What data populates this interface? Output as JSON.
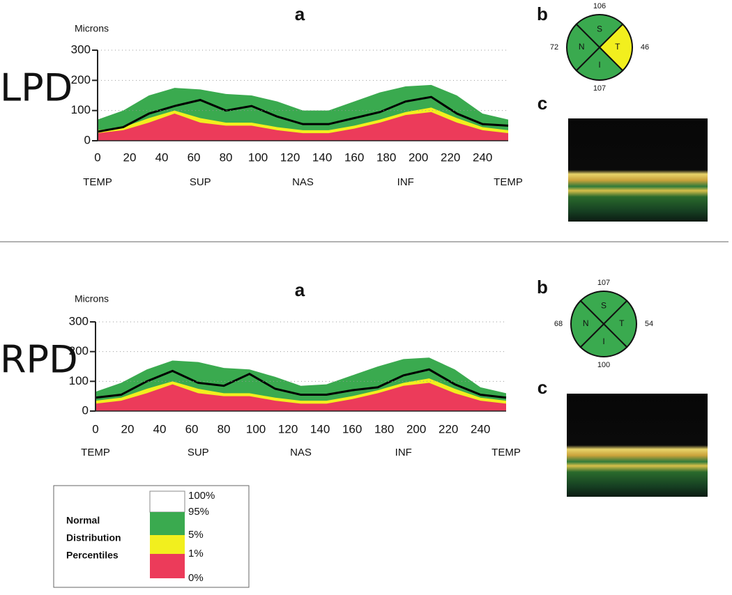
{
  "chart_data": [
    {
      "type": "percentile-area",
      "title": "a",
      "y_label": "Microns",
      "x": [
        0,
        16,
        32,
        48,
        64,
        80,
        96,
        112,
        128,
        144,
        160,
        176,
        192,
        208,
        224,
        240,
        256
      ],
      "series": [
        {
          "color": "#3aaa4f",
          "values": [
            70,
            100,
            150,
            175,
            170,
            155,
            150,
            130,
            100,
            100,
            130,
            160,
            180,
            185,
            150,
            90,
            70
          ]
        },
        {
          "color": "#f2ef1e",
          "values": [
            35,
            45,
            75,
            100,
            75,
            60,
            60,
            45,
            35,
            35,
            50,
            70,
            95,
            110,
            75,
            45,
            35
          ]
        },
        {
          "color": "#ec3b5a",
          "values": [
            25,
            35,
            60,
            90,
            60,
            50,
            50,
            35,
            25,
            25,
            40,
            60,
            85,
            95,
            60,
            35,
            25
          ]
        },
        {
          "color": "#000000",
          "line": true,
          "values": [
            30,
            45,
            90,
            115,
            135,
            100,
            115,
            80,
            55,
            55,
            75,
            95,
            130,
            145,
            90,
            55,
            50
          ]
        }
      ],
      "xlim": [
        0,
        256
      ],
      "xticks": [
        0,
        20,
        40,
        60,
        80,
        100,
        120,
        140,
        160,
        180,
        200,
        220,
        240
      ],
      "ylim": [
        0,
        300
      ],
      "yticks": [
        0,
        100,
        200,
        300
      ],
      "grid": true,
      "regions": [
        {
          "value": 0,
          "label": "TEMP"
        },
        {
          "value": 64,
          "label": "SUP"
        },
        {
          "value": 128,
          "label": "NAS"
        },
        {
          "value": 192,
          "label": "INF"
        },
        {
          "value": 256,
          "label": "TEMP"
        }
      ]
    },
    {
      "type": "quadrant",
      "title": "b",
      "categories": [
        "S",
        "T",
        "I",
        "N"
      ],
      "values": [
        106,
        46,
        107,
        72
      ],
      "colors": [
        "#3aaa4f",
        "#f2ef1e",
        "#3aaa4f",
        "#3aaa4f"
      ]
    },
    {
      "type": "percentile-area",
      "title": "a",
      "y_label": "Microns",
      "x": [
        0,
        16,
        32,
        48,
        64,
        80,
        96,
        112,
        128,
        144,
        160,
        176,
        192,
        208,
        224,
        240,
        256
      ],
      "series": [
        {
          "color": "#3aaa4f",
          "values": [
            65,
            95,
            140,
            170,
            165,
            145,
            140,
            115,
            85,
            90,
            120,
            150,
            175,
            180,
            140,
            80,
            60
          ]
        },
        {
          "color": "#f2ef1e",
          "values": [
            35,
            45,
            75,
            100,
            75,
            60,
            60,
            45,
            35,
            35,
            50,
            70,
            95,
            110,
            75,
            45,
            35
          ]
        },
        {
          "color": "#ec3b5a",
          "values": [
            25,
            35,
            60,
            90,
            60,
            50,
            50,
            35,
            25,
            25,
            40,
            60,
            85,
            95,
            60,
            35,
            25
          ]
        },
        {
          "color": "#000000",
          "line": true,
          "values": [
            45,
            55,
            100,
            135,
            95,
            85,
            125,
            75,
            55,
            55,
            70,
            80,
            120,
            140,
            90,
            55,
            45
          ]
        }
      ],
      "xlim": [
        0,
        256
      ],
      "xticks": [
        0,
        20,
        40,
        60,
        80,
        100,
        120,
        140,
        160,
        180,
        200,
        220,
        240
      ],
      "ylim": [
        0,
        300
      ],
      "yticks": [
        0,
        100,
        200,
        300
      ],
      "grid": true,
      "regions": [
        {
          "value": 0,
          "label": "TEMP"
        },
        {
          "value": 64,
          "label": "SUP"
        },
        {
          "value": 128,
          "label": "NAS"
        },
        {
          "value": 192,
          "label": "INF"
        },
        {
          "value": 256,
          "label": "TEMP"
        }
      ]
    },
    {
      "type": "quadrant",
      "title": "b",
      "categories": [
        "S",
        "T",
        "I",
        "N"
      ],
      "values": [
        107,
        54,
        100,
        68
      ],
      "colors": [
        "#3aaa4f",
        "#3aaa4f",
        "#3aaa4f",
        "#3aaa4f"
      ]
    }
  ],
  "panels": [
    {
      "label": "LPD",
      "image_label": "c"
    },
    {
      "label": "RPD",
      "image_label": "c"
    }
  ],
  "legend": {
    "title": [
      "Normal",
      "Distribution",
      "Percentiles"
    ],
    "levels": [
      "100%",
      "95%",
      "5%",
      "1%",
      "0%"
    ],
    "colors": [
      "#ffffff",
      "#3aaa4f",
      "#f2ef1e",
      "#ec3b5a"
    ]
  }
}
